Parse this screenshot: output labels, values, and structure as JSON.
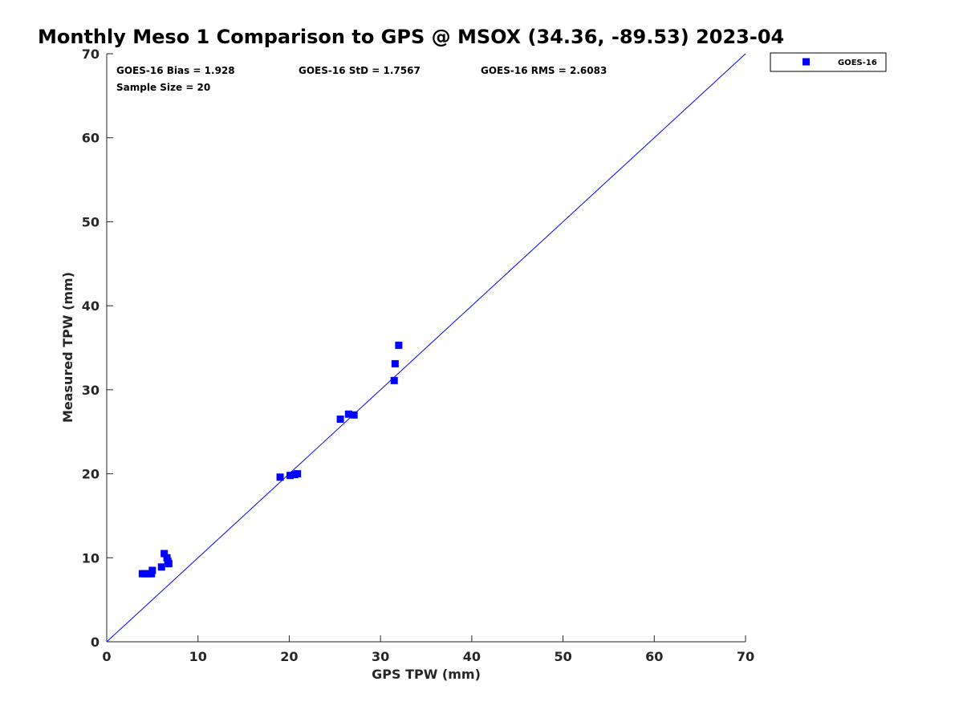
{
  "chart_data": {
    "type": "scatter",
    "title": "Monthly Meso 1 Comparison to GPS @ MSOX (34.36, -89.53) 2023-04",
    "xlabel": "GPS TPW (mm)",
    "ylabel": "Measured TPW (mm)",
    "xlim": [
      0,
      70
    ],
    "ylim": [
      0,
      70
    ],
    "xticks": [
      "0",
      "10",
      "20",
      "30",
      "40",
      "50",
      "60",
      "70"
    ],
    "yticks": [
      "0",
      "10",
      "20",
      "30",
      "40",
      "50",
      "60",
      "70"
    ],
    "grid": false,
    "legend_position": "top-right",
    "reference_line": {
      "x": [
        0,
        70
      ],
      "y": [
        0,
        70
      ],
      "color": "#0000ff"
    },
    "stats": {
      "bias": "GOES-16 Bias = 1.928",
      "std": "GOES-16 StD = 1.7567",
      "rms": "GOES-16 RMS = 2.6083",
      "sample_size": "Sample Size = 20"
    },
    "series": [
      {
        "name": "GOES-16",
        "color": "#0000ff",
        "marker": "square",
        "x": [
          3.9,
          4.2,
          4.6,
          4.9,
          5.0,
          6.0,
          6.3,
          6.6,
          6.7,
          6.8,
          19.0,
          20.1,
          20.6,
          20.9,
          25.6,
          26.5,
          27.1,
          31.5,
          31.6,
          32.0
        ],
        "y": [
          8.1,
          8.1,
          8.1,
          8.1,
          8.5,
          8.9,
          10.5,
          10.0,
          9.6,
          9.3,
          19.6,
          19.8,
          19.9,
          20.0,
          26.5,
          27.1,
          27.0,
          31.1,
          33.1,
          35.3
        ]
      }
    ]
  }
}
